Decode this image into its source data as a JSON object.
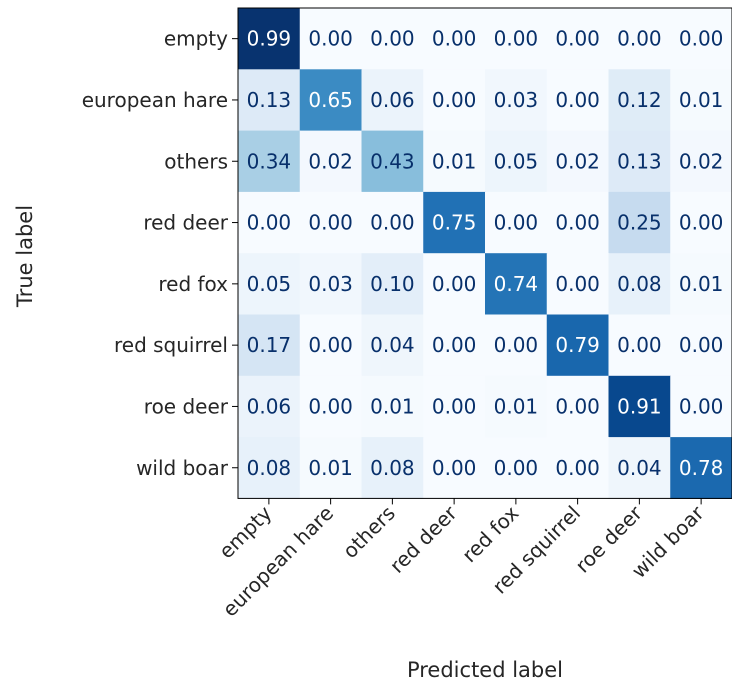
{
  "chart_data": {
    "type": "heatmap",
    "title": "",
    "xlabel": "Predicted label",
    "ylabel": "True label",
    "x_categories": [
      "empty",
      "european hare",
      "others",
      "red deer",
      "red fox",
      "red squirrel",
      "roe deer",
      "wild boar"
    ],
    "y_categories": [
      "empty",
      "european hare",
      "others",
      "red deer",
      "red fox",
      "red squirrel",
      "roe deer",
      "wild boar"
    ],
    "values": [
      [
        0.99,
        0.0,
        0.0,
        0.0,
        0.0,
        0.0,
        0.0,
        0.0
      ],
      [
        0.13,
        0.65,
        0.06,
        0.0,
        0.03,
        0.0,
        0.12,
        0.01
      ],
      [
        0.34,
        0.02,
        0.43,
        0.01,
        0.05,
        0.02,
        0.13,
        0.02
      ],
      [
        0.0,
        0.0,
        0.0,
        0.75,
        0.0,
        0.0,
        0.25,
        0.0
      ],
      [
        0.05,
        0.03,
        0.1,
        0.0,
        0.74,
        0.0,
        0.08,
        0.01
      ],
      [
        0.17,
        0.0,
        0.04,
        0.0,
        0.0,
        0.79,
        0.0,
        0.0
      ],
      [
        0.06,
        0.0,
        0.01,
        0.0,
        0.01,
        0.0,
        0.91,
        0.0
      ],
      [
        0.08,
        0.01,
        0.08,
        0.0,
        0.0,
        0.0,
        0.04,
        0.78
      ]
    ],
    "value_range": [
      0,
      1
    ],
    "colormap": "Blues",
    "grid": false
  }
}
